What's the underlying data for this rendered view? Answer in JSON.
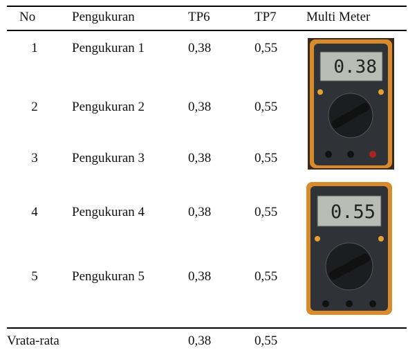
{
  "table": {
    "header": [
      "No",
      "Pengukuran",
      "TP6",
      "TP7",
      "Multi Meter"
    ],
    "rows": [
      [
        "1",
        "Pengukuran 1",
        "0,38",
        "0,55"
      ],
      [
        "2",
        "Pengukuran 2",
        "0,38",
        "0,55"
      ],
      [
        "3",
        "Pengukuran 3",
        "0,38",
        "0,55"
      ],
      [
        "4",
        "Pengukuran 4",
        "0,38",
        "0,55"
      ],
      [
        "5",
        "Pengukuran 5",
        "0,38",
        "0,55"
      ]
    ],
    "footer": [
      "Vrata-rata",
      "0,38",
      "0,55"
    ]
  },
  "meter_readings": [
    "0.38",
    "0.55"
  ]
}
